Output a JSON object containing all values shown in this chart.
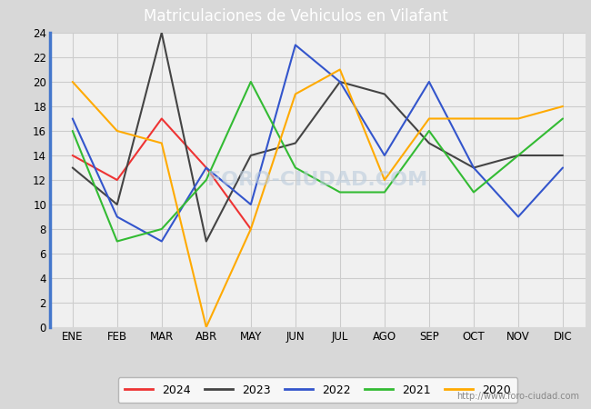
{
  "title": "Matriculaciones de Vehiculos en Vilafant",
  "months": [
    "ENE",
    "FEB",
    "MAR",
    "ABR",
    "MAY",
    "JUN",
    "JUL",
    "AGO",
    "SEP",
    "OCT",
    "NOV",
    "DIC"
  ],
  "series_order": [
    "2024",
    "2023",
    "2022",
    "2021",
    "2020"
  ],
  "series": {
    "2024": {
      "values": [
        14,
        12,
        17,
        13,
        8,
        null,
        null,
        null,
        null,
        null,
        null,
        null
      ],
      "color": "#ee3333",
      "linewidth": 1.5
    },
    "2023": {
      "values": [
        13,
        10,
        24,
        7,
        14,
        15,
        20,
        19,
        15,
        13,
        14,
        14
      ],
      "color": "#444444",
      "linewidth": 1.5
    },
    "2022": {
      "values": [
        17,
        9,
        7,
        13,
        10,
        23,
        20,
        14,
        20,
        13,
        9,
        13
      ],
      "color": "#3355cc",
      "linewidth": 1.5
    },
    "2021": {
      "values": [
        16,
        7,
        8,
        12,
        20,
        13,
        11,
        11,
        16,
        11,
        14,
        17
      ],
      "color": "#33bb33",
      "linewidth": 1.5
    },
    "2020": {
      "values": [
        20,
        16,
        15,
        0,
        8,
        19,
        21,
        12,
        17,
        17,
        17,
        18
      ],
      "color": "#ffaa00",
      "linewidth": 1.5
    }
  },
  "ylim": [
    0,
    24
  ],
  "yticks": [
    0,
    2,
    4,
    6,
    8,
    10,
    12,
    14,
    16,
    18,
    20,
    22,
    24
  ],
  "fig_bg_color": "#d8d8d8",
  "plot_bg_color": "#f0f0f0",
  "title_bg_color": "#5588dd",
  "title_color": "white",
  "title_fontsize": 12,
  "grid_color": "#cccccc",
  "left_border_color": "#4477cc",
  "watermark": "FORO-CIUDAD.COM",
  "url": "http://www.foro-ciudad.com",
  "legend_years": [
    "2024",
    "2023",
    "2022",
    "2021",
    "2020"
  ],
  "legend_colors": [
    "#ee3333",
    "#444444",
    "#3355cc",
    "#33bb33",
    "#ffaa00"
  ]
}
